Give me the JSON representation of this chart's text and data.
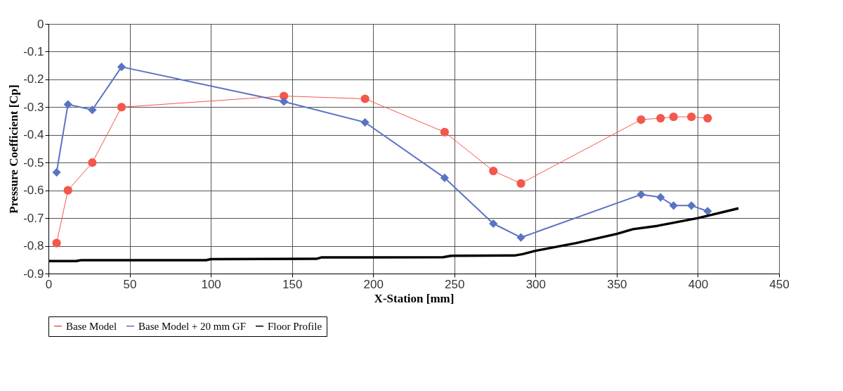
{
  "chart_data": {
    "type": "line",
    "xlabel": "X-Station [mm]",
    "ylabel": "Pressure Coefficient [Cp]",
    "xlim": [
      0,
      450
    ],
    "xticks": [
      0,
      50,
      100,
      150,
      200,
      250,
      300,
      350,
      400,
      450
    ],
    "ylim": [
      -0.9,
      0
    ],
    "yticks": [
      0,
      -0.1,
      -0.2,
      -0.3,
      -0.4,
      -0.5,
      -0.6,
      -0.7,
      -0.8,
      -0.9
    ],
    "grid": true,
    "legend": "bottom",
    "series": [
      {
        "name": "Base Model",
        "color": "#f4574b",
        "marker": "circle",
        "line_style": "solid",
        "x": [
          5,
          12,
          27,
          45,
          145,
          195,
          244,
          274,
          291,
          365,
          377,
          385,
          396,
          406
        ],
        "values": [
          -0.79,
          -0.6,
          -0.5,
          -0.3,
          -0.26,
          -0.27,
          -0.39,
          -0.53,
          -0.575,
          -0.345,
          -0.34,
          -0.335,
          -0.335,
          -0.34
        ]
      },
      {
        "name": "Base Model + 20 mm GF",
        "color": "#5b73c4",
        "marker": "diamond",
        "line_style": "solid",
        "x": [
          5,
          12,
          27,
          45,
          145,
          195,
          244,
          274,
          291,
          365,
          377,
          385,
          396,
          406
        ],
        "values": [
          -0.535,
          -0.29,
          -0.31,
          -0.155,
          -0.28,
          -0.355,
          -0.555,
          -0.72,
          -0.77,
          -0.615,
          -0.625,
          -0.655,
          -0.655,
          -0.675
        ]
      },
      {
        "name": "Floor Profile",
        "color": "#000000",
        "marker": "none",
        "line_style": "solid",
        "x": [
          0,
          17,
          20,
          97,
          100,
          165,
          168,
          243,
          248,
          287,
          292,
          300,
          325,
          350,
          360,
          375,
          400,
          425
        ],
        "values": [
          -0.855,
          -0.855,
          -0.852,
          -0.852,
          -0.848,
          -0.847,
          -0.842,
          -0.841,
          -0.836,
          -0.835,
          -0.83,
          -0.818,
          -0.79,
          -0.757,
          -0.74,
          -0.728,
          -0.7,
          -0.665
        ]
      }
    ]
  }
}
